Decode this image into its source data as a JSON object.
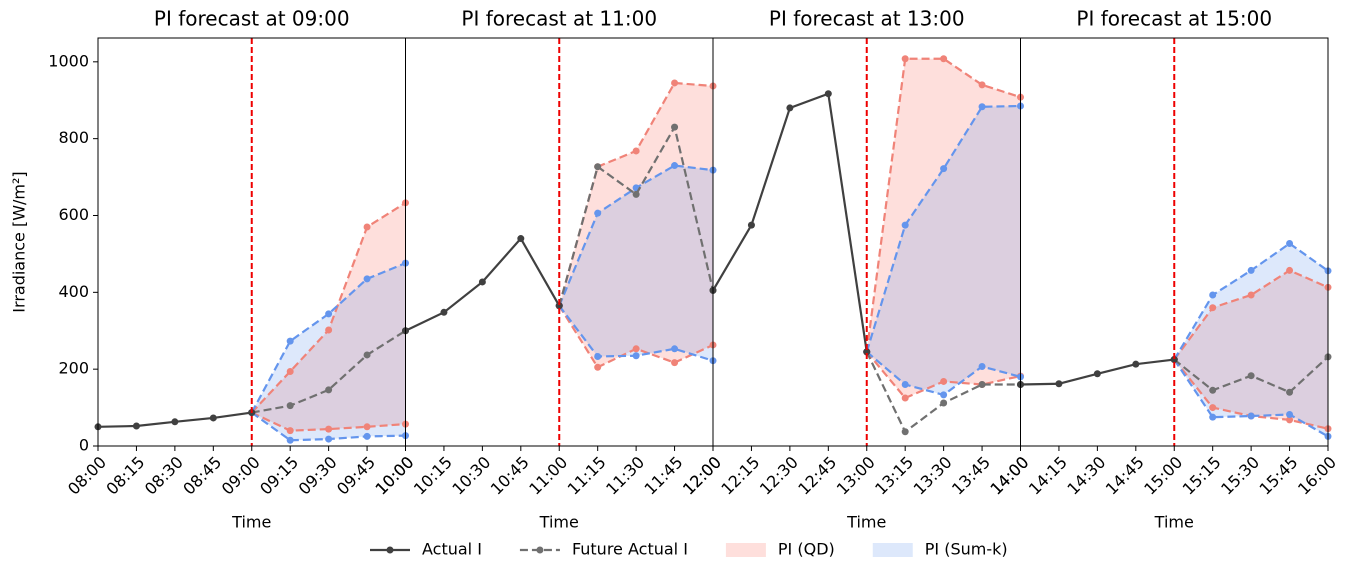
{
  "chart_data": [
    {
      "type": "line",
      "title": "PI forecast at 09:00",
      "xlabel": "Time",
      "ylabel": "Irradiance [W/m²]",
      "forecast_at": "09:00",
      "categories": [
        "08:00",
        "08:15",
        "08:30",
        "08:45",
        "09:00",
        "09:15",
        "09:30",
        "09:45",
        "10:00"
      ],
      "actual": [
        50,
        52,
        63,
        73,
        87,
        null,
        null,
        null,
        null
      ],
      "future": [
        null,
        null,
        null,
        null,
        87,
        105,
        146,
        237,
        300
      ],
      "pi_qd": {
        "upper": [
          null,
          null,
          null,
          null,
          87,
          194,
          302,
          570,
          633
        ],
        "lower": [
          null,
          null,
          null,
          null,
          87,
          40,
          44,
          50,
          57
        ]
      },
      "pi_sumk": {
        "upper": [
          null,
          null,
          null,
          null,
          87,
          273,
          344,
          435,
          476
        ],
        "lower": [
          null,
          null,
          null,
          null,
          87,
          15,
          18,
          25,
          27
        ]
      },
      "ylim": [
        0,
        1062
      ],
      "yticks": [
        0,
        200,
        400,
        600,
        800,
        1000
      ]
    },
    {
      "type": "line",
      "title": "PI forecast at 11:00",
      "xlabel": "Time",
      "forecast_at": "11:00",
      "categories": [
        "10:00",
        "10:15",
        "10:30",
        "10:45",
        "11:00",
        "11:15",
        "11:30",
        "11:45",
        "12:00"
      ],
      "actual": [
        300,
        348,
        427,
        540,
        365,
        null,
        null,
        null,
        null
      ],
      "future": [
        null,
        null,
        null,
        null,
        365,
        727,
        655,
        830,
        405
      ],
      "pi_qd": {
        "upper": [
          null,
          null,
          null,
          null,
          365,
          727,
          768,
          945,
          937
        ],
        "lower": [
          null,
          null,
          null,
          null,
          365,
          205,
          253,
          217,
          263
        ]
      },
      "pi_sumk": {
        "upper": [
          null,
          null,
          null,
          null,
          365,
          606,
          672,
          730,
          718
        ],
        "lower": [
          null,
          null,
          null,
          null,
          365,
          233,
          235,
          253,
          222
        ]
      },
      "ylim": [
        0,
        1062
      ]
    },
    {
      "type": "line",
      "title": "PI forecast at 13:00",
      "xlabel": "Time",
      "forecast_at": "13:00",
      "categories": [
        "12:00",
        "12:15",
        "12:30",
        "12:45",
        "13:00",
        "13:15",
        "13:30",
        "13:45",
        "14:00"
      ],
      "actual": [
        405,
        575,
        880,
        917,
        245,
        null,
        null,
        null,
        null
      ],
      "future": [
        null,
        null,
        null,
        null,
        245,
        37,
        112,
        160,
        160
      ],
      "pi_qd": {
        "upper": [
          null,
          null,
          null,
          null,
          245,
          1008,
          1008,
          940,
          908
        ],
        "lower": [
          null,
          null,
          null,
          null,
          245,
          125,
          168,
          160,
          182
        ]
      },
      "pi_sumk": {
        "upper": [
          null,
          null,
          null,
          null,
          245,
          575,
          722,
          883,
          885
        ],
        "lower": [
          null,
          null,
          null,
          null,
          245,
          160,
          133,
          207,
          180
        ]
      },
      "ylim": [
        0,
        1062
      ]
    },
    {
      "type": "line",
      "title": "PI forecast at 15:00",
      "xlabel": "Time",
      "forecast_at": "15:00",
      "categories": [
        "14:00",
        "14:15",
        "14:30",
        "14:45",
        "15:00",
        "15:15",
        "15:30",
        "15:45",
        "16:00"
      ],
      "actual": [
        160,
        162,
        188,
        213,
        225,
        null,
        null,
        null,
        null
      ],
      "future": [
        null,
        null,
        null,
        null,
        225,
        145,
        183,
        140,
        232
      ],
      "pi_qd": {
        "upper": [
          null,
          null,
          null,
          null,
          225,
          360,
          393,
          457,
          413
        ],
        "lower": [
          null,
          null,
          null,
          null,
          225,
          100,
          78,
          68,
          45
        ]
      },
      "pi_sumk": {
        "upper": [
          null,
          null,
          null,
          null,
          225,
          393,
          457,
          527,
          456
        ],
        "lower": [
          null,
          null,
          null,
          null,
          225,
          75,
          78,
          82,
          25
        ]
      },
      "ylim": [
        0,
        1062
      ]
    }
  ],
  "legend": [
    {
      "key": "actual",
      "name": "Actual I",
      "color": "#404040",
      "kind": "line"
    },
    {
      "key": "future",
      "name": "Future Actual I",
      "color": "#707070",
      "kind": "dashed"
    },
    {
      "key": "pi_qd",
      "name": "PI (QD)",
      "color": "#f08378",
      "fill": "rgba(250,128,114,0.25)",
      "kind": "patch"
    },
    {
      "key": "pi_sumk",
      "name": "PI (Sum-k)",
      "color": "#6495ed",
      "fill": "rgba(100,149,237,0.22)",
      "kind": "patch"
    }
  ]
}
